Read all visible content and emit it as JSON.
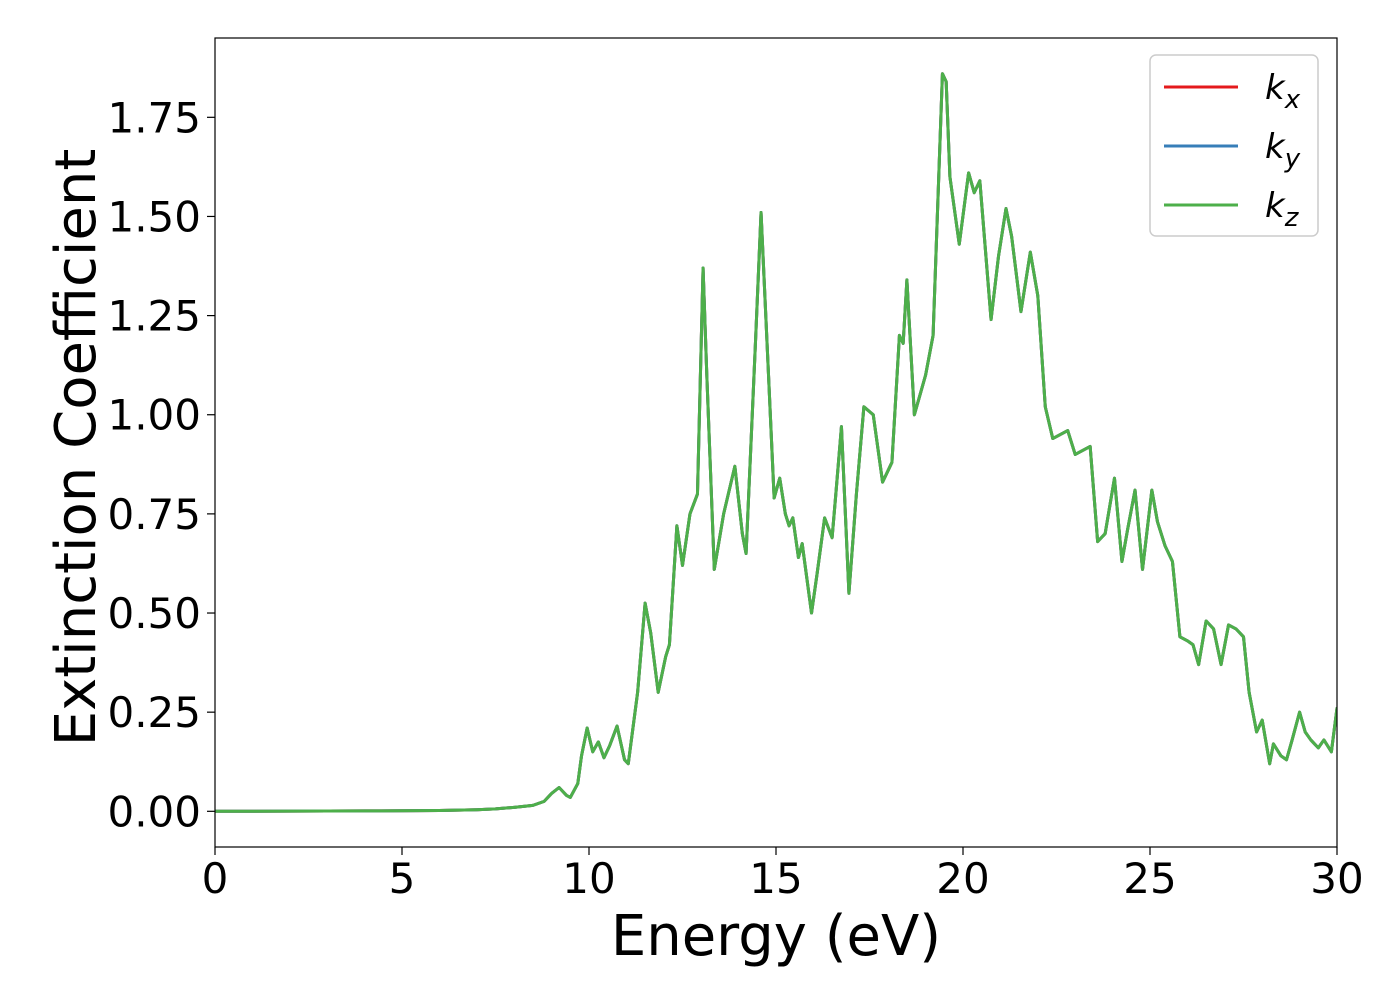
{
  "chart_data": {
    "type": "line",
    "xlabel": "Energy (eV)",
    "ylabel": "Extinction Coefficient",
    "xlim": [
      0,
      30
    ],
    "ylim": [
      -0.09,
      1.95
    ],
    "x_ticks": [
      0,
      5,
      10,
      15,
      20,
      25,
      30
    ],
    "y_ticks": [
      0.0,
      0.25,
      0.5,
      0.75,
      1.0,
      1.25,
      1.5,
      1.75
    ],
    "x_tick_labels": [
      "0",
      "5",
      "10",
      "15",
      "20",
      "25",
      "30"
    ],
    "y_tick_labels": [
      "0.00",
      "0.25",
      "0.50",
      "0.75",
      "1.00",
      "1.25",
      "1.50",
      "1.75"
    ],
    "grid": false,
    "legend_position": "top-right",
    "series": [
      {
        "name": "k_x",
        "label_base": "k",
        "label_sub": "x",
        "color": "#e41a1c"
      },
      {
        "name": "k_y",
        "label_base": "k",
        "label_sub": "y",
        "color": "#377eb8"
      },
      {
        "name": "k_z",
        "label_base": "k",
        "label_sub": "z",
        "color": "#4daf4a"
      }
    ],
    "x": [
      0,
      2,
      4,
      6,
      7,
      7.5,
      8,
      8.5,
      8.8,
      9.0,
      9.2,
      9.3,
      9.4,
      9.5,
      9.7,
      9.8,
      9.95,
      10.1,
      10.25,
      10.4,
      10.55,
      10.75,
      10.95,
      11.05,
      11.3,
      11.5,
      11.65,
      11.85,
      12.05,
      12.15,
      12.35,
      12.5,
      12.7,
      12.9,
      13.05,
      13.15,
      13.35,
      13.6,
      13.9,
      14.1,
      14.2,
      14.45,
      14.6,
      14.8,
      14.95,
      15.1,
      15.25,
      15.35,
      15.45,
      15.6,
      15.7,
      15.95,
      16.1,
      16.3,
      16.5,
      16.6,
      16.75,
      16.95,
      17.15,
      17.35,
      17.6,
      17.85,
      18.1,
      18.3,
      18.4,
      18.5,
      18.7,
      18.85,
      19.0,
      19.2,
      19.45,
      19.55,
      19.65,
      19.9,
      20.15,
      20.3,
      20.45,
      20.75,
      20.95,
      21.15,
      21.3,
      21.55,
      21.8,
      22.0,
      22.2,
      22.4,
      22.6,
      22.8,
      23.0,
      23.2,
      23.4,
      23.6,
      23.8,
      24.05,
      24.25,
      24.4,
      24.6,
      24.8,
      25.05,
      25.2,
      25.4,
      25.6,
      25.8,
      26.0,
      26.15,
      26.3,
      26.5,
      26.7,
      26.9,
      27.1,
      27.3,
      27.5,
      27.65,
      27.85,
      28.0,
      28.2,
      28.3,
      28.5,
      28.65,
      28.8,
      29.0,
      29.15,
      29.3,
      29.5,
      29.65,
      29.85,
      30.0
    ],
    "values": [
      0,
      0.0005,
      0.001,
      0.002,
      0.004,
      0.006,
      0.01,
      0.015,
      0.025,
      0.045,
      0.06,
      0.05,
      0.04,
      0.035,
      0.07,
      0.14,
      0.21,
      0.15,
      0.175,
      0.135,
      0.165,
      0.215,
      0.13,
      0.12,
      0.3,
      0.525,
      0.45,
      0.3,
      0.39,
      0.42,
      0.72,
      0.62,
      0.75,
      0.8,
      1.37,
      1.1,
      0.61,
      0.75,
      0.87,
      0.7,
      0.65,
      1.18,
      1.51,
      1.1,
      0.79,
      0.84,
      0.75,
      0.72,
      0.74,
      0.64,
      0.675,
      0.5,
      0.6,
      0.74,
      0.69,
      0.8,
      0.97,
      0.55,
      0.8,
      1.02,
      1.0,
      0.83,
      0.88,
      1.2,
      1.18,
      1.34,
      1.0,
      1.05,
      1.1,
      1.2,
      1.86,
      1.84,
      1.6,
      1.43,
      1.61,
      1.56,
      1.59,
      1.24,
      1.4,
      1.52,
      1.45,
      1.26,
      1.41,
      1.3,
      1.02,
      0.94,
      0.95,
      0.96,
      0.9,
      0.91,
      0.92,
      0.68,
      0.7,
      0.84,
      0.63,
      0.71,
      0.81,
      0.61,
      0.81,
      0.73,
      0.67,
      0.63,
      0.44,
      0.43,
      0.42,
      0.37,
      0.48,
      0.46,
      0.37,
      0.47,
      0.46,
      0.44,
      0.3,
      0.2,
      0.23,
      0.12,
      0.17,
      0.14,
      0.13,
      0.18,
      0.25,
      0.2,
      0.18,
      0.16,
      0.18,
      0.15,
      0.26
    ]
  }
}
